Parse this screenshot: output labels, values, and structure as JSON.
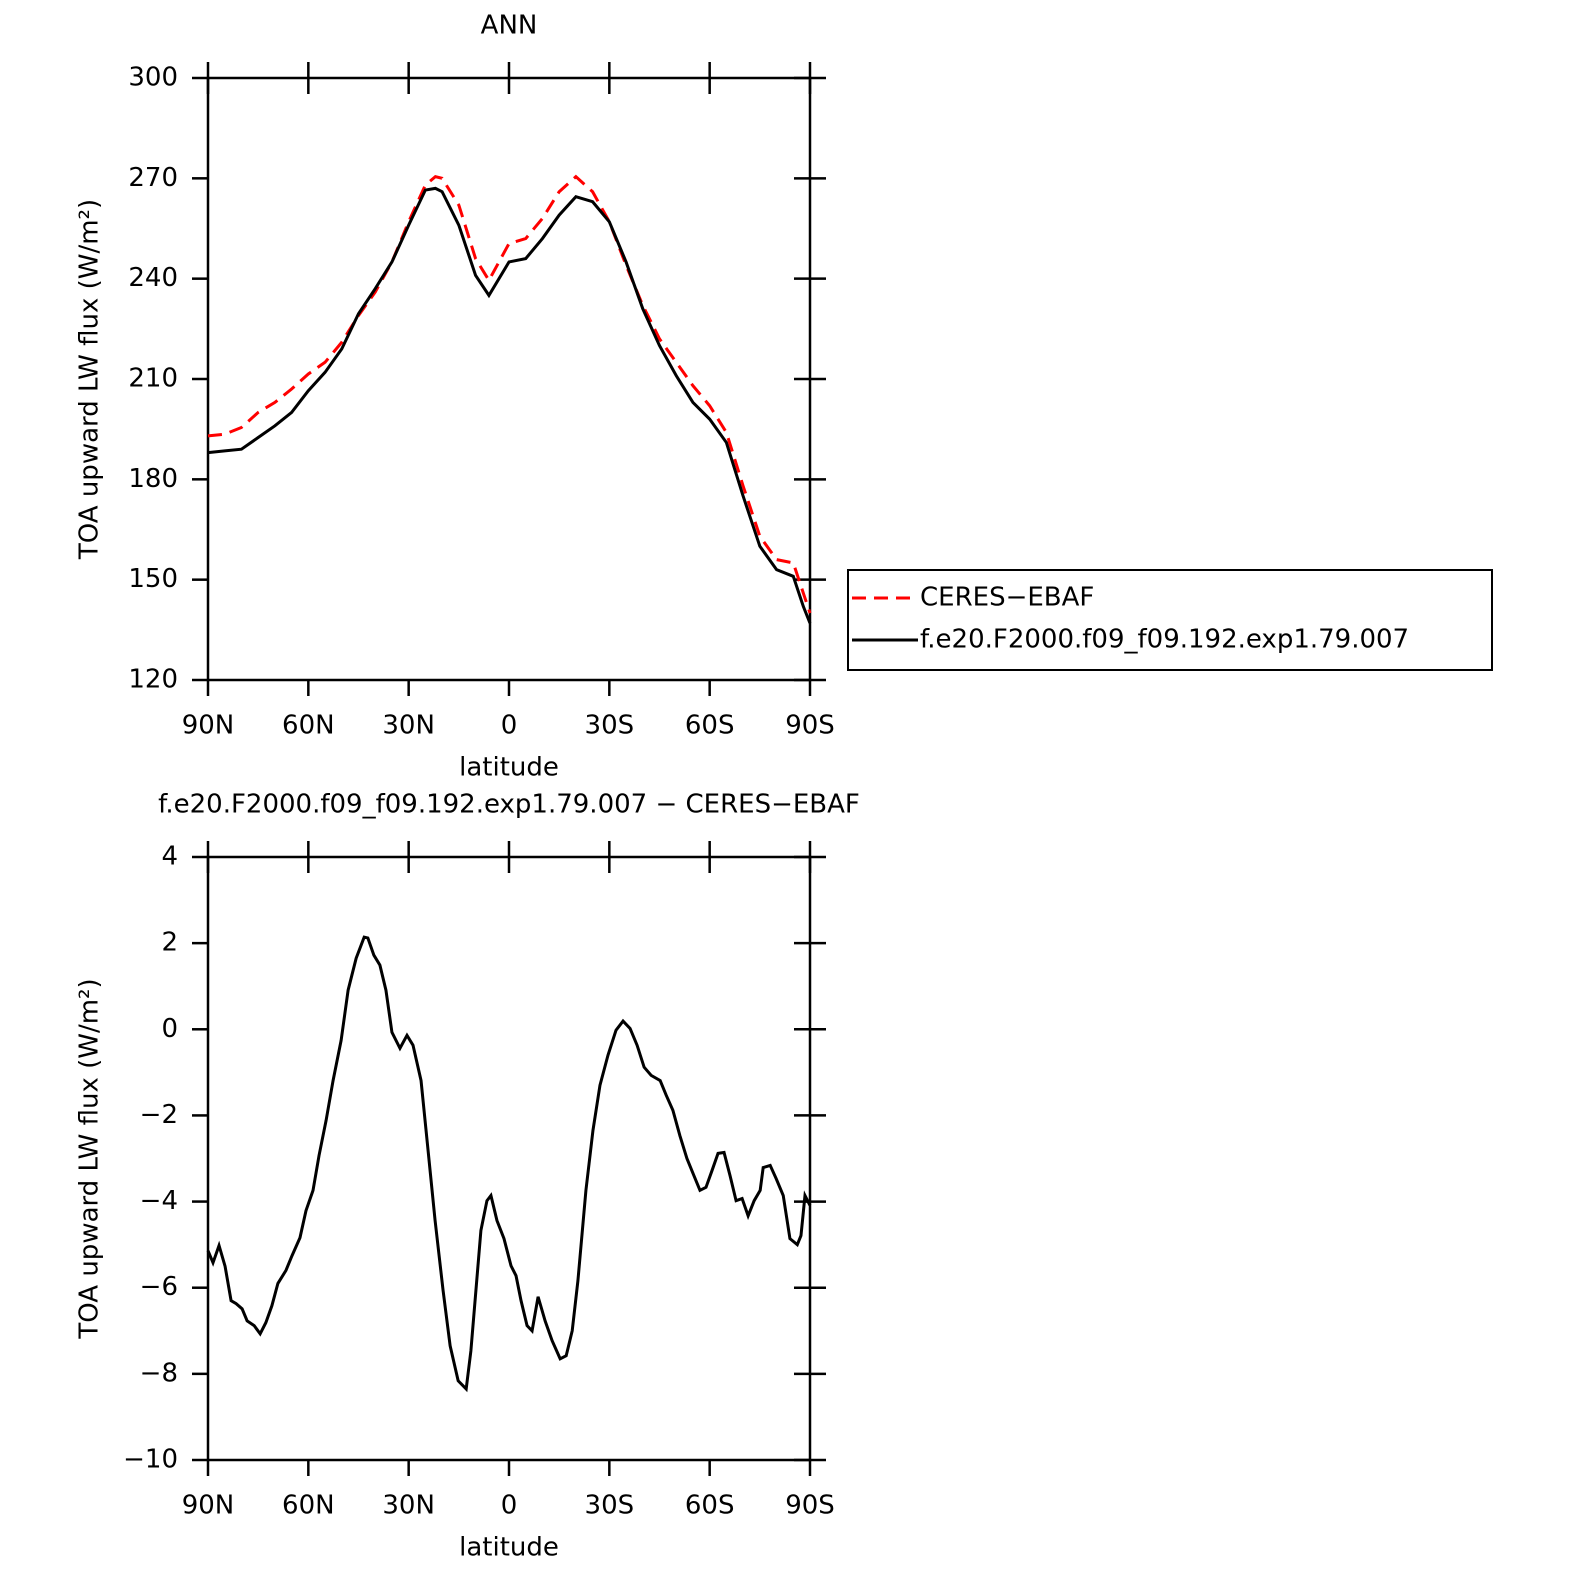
{
  "chart_data": [
    {
      "type": "line",
      "title": "ANN",
      "xlabel": "latitude",
      "ylabel": "TOA upward LW flux (W/m²)",
      "x": [
        90,
        85,
        80,
        75,
        70,
        65,
        60,
        55,
        50,
        45,
        40,
        35,
        30,
        25,
        22,
        20,
        15,
        10,
        6,
        0,
        -5,
        -10,
        -15,
        -20,
        -25,
        -30,
        -35,
        -40,
        -45,
        -50,
        -55,
        -60,
        -65,
        -70,
        -75,
        -80,
        -85,
        -88,
        -90
      ],
      "series": [
        {
          "name": "CERES−EBAF",
          "color": "#ff0000",
          "line_style": "dashed",
          "values": [
            193,
            193.5,
            195.5,
            200,
            203,
            207,
            211.5,
            215,
            221,
            229,
            236,
            245,
            257,
            268,
            270.5,
            270,
            262,
            246,
            239.5,
            250.5,
            252,
            258,
            266,
            270.5,
            266,
            257,
            244,
            232,
            222,
            215,
            208,
            202,
            194,
            178,
            163,
            156,
            155,
            146,
            140
          ]
        },
        {
          "name": "f.e20.F2000.f09_f09.192.exp1.79.007",
          "color": "#000000",
          "line_style": "solid",
          "values": [
            188,
            188.5,
            189,
            192.5,
            196,
            200,
            206.5,
            212,
            219,
            229.5,
            237,
            245,
            256,
            266.5,
            267,
            266,
            256,
            241,
            235,
            245,
            246,
            252,
            259,
            264.5,
            263,
            257,
            245,
            231,
            220,
            211,
            203,
            198,
            191,
            175,
            160,
            153,
            151,
            142,
            137
          ]
        }
      ],
      "xlim": [
        90,
        -90
      ],
      "xticks": [
        {
          "value": 90,
          "label": "90N"
        },
        {
          "value": 60,
          "label": "60N"
        },
        {
          "value": 30,
          "label": "30N"
        },
        0,
        {
          "value": -30,
          "label": "30S"
        },
        {
          "value": -60,
          "label": "60S"
        },
        {
          "value": -90,
          "label": "90S"
        }
      ],
      "ylim": [
        120,
        300
      ],
      "yticks": [
        120,
        150,
        180,
        210,
        240,
        270,
        300
      ],
      "legend": "right"
    },
    {
      "type": "line",
      "title": "f.e20.F2000.f09_f09.192.exp1.79.007 − CERES−EBAF",
      "xlabel": "latitude",
      "ylabel": "TOA upward LW flux (W/m²)",
      "x": [
        90,
        88.5,
        86.7,
        84.9,
        83.1,
        81.6,
        79.8,
        78.3,
        76.2,
        74.4,
        72.7,
        70.9,
        69.1,
        66.7,
        64.9,
        62.5,
        60.7,
        58.6,
        56.8,
        54.7,
        52.6,
        50.2,
        48.1,
        45.7,
        43.3,
        42.2,
        40.4,
        38.6,
        36.8,
        35,
        32.6,
        30.5,
        28.7,
        26.3,
        24.2,
        22.1,
        19.7,
        17.6,
        15.2,
        12.8,
        11.4,
        9.9,
        8.4,
        6.6,
        5.4,
        3.6,
        1.5,
        -0.6,
        -2.1,
        -3.6,
        -5.4,
        -6.9,
        -8.7,
        -10.8,
        -12.9,
        -15.3,
        -17.1,
        -18.9,
        -20.6,
        -23,
        -25.1,
        -27.2,
        -29.6,
        -32,
        -34.1,
        -36.2,
        -38.3,
        -40.4,
        -42.5,
        -45.2,
        -47,
        -49,
        -51.1,
        -53.2,
        -55.3,
        -57.1,
        -58.9,
        -60.7,
        -62.5,
        -64.3,
        -66.1,
        -67.9,
        -69.7,
        -71.5,
        -73.3,
        -75.1,
        -76,
        -78.1,
        -79.9,
        -82,
        -84,
        -86.2,
        -87.3,
        -88.5,
        -90
      ],
      "color": "#000000",
      "values": [
        -5.14,
        -5.42,
        -5.02,
        -5.5,
        -6.3,
        -6.37,
        -6.49,
        -6.77,
        -6.88,
        -7.07,
        -6.81,
        -6.42,
        -5.9,
        -5.6,
        -5.26,
        -4.84,
        -4.21,
        -3.74,
        -2.93,
        -2.12,
        -1.19,
        -0.26,
        0.91,
        1.65,
        2.14,
        2.12,
        1.72,
        1.49,
        0.91,
        -0.07,
        -0.44,
        -0.14,
        -0.37,
        -1.19,
        -2.81,
        -4.44,
        -6.07,
        -7.35,
        -8.16,
        -8.35,
        -7.47,
        -6.07,
        -4.67,
        -3.98,
        -3.86,
        -4.44,
        -4.86,
        -5.49,
        -5.72,
        -6.3,
        -6.88,
        -7,
        -6.21,
        -6.77,
        -7.23,
        -7.65,
        -7.58,
        -7,
        -5.84,
        -3.74,
        -2.35,
        -1.3,
        -0.6,
        -0.02,
        0.19,
        0.02,
        -0.37,
        -0.88,
        -1.07,
        -1.19,
        -1.53,
        -1.88,
        -2.47,
        -3,
        -3.4,
        -3.74,
        -3.67,
        -3.28,
        -2.88,
        -2.86,
        -3.4,
        -3.98,
        -3.93,
        -4.33,
        -3.98,
        -3.74,
        -3.21,
        -3.16,
        -3.47,
        -3.86,
        -4.86,
        -5,
        -4.79,
        -3.86,
        -4.09
      ],
      "xlim": [
        90,
        -90
      ],
      "xticks": [
        {
          "value": 90,
          "label": "90N"
        },
        {
          "value": 60,
          "label": "60N"
        },
        {
          "value": 30,
          "label": "30N"
        },
        0,
        {
          "value": -30,
          "label": "30S"
        },
        {
          "value": -60,
          "label": "60S"
        },
        {
          "value": -90,
          "label": "90S"
        }
      ],
      "ylim": [
        -10,
        4
      ],
      "yticks": [
        {
          "value": -10,
          "label": "−10"
        },
        {
          "value": -8,
          "label": "−8"
        },
        {
          "value": -6,
          "label": "−6"
        },
        {
          "value": -4,
          "label": "−4"
        },
        {
          "value": -2,
          "label": "−2"
        },
        0,
        2,
        4
      ]
    }
  ]
}
